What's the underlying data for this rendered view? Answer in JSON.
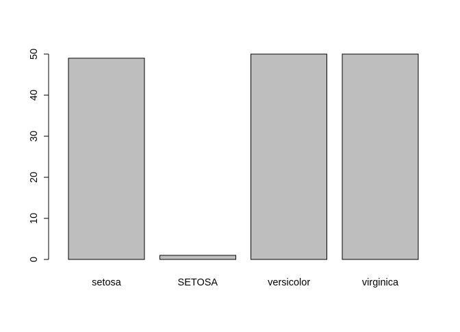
{
  "chart_data": {
    "type": "bar",
    "title": "",
    "xlabel": "",
    "ylabel": "",
    "categories": [
      "setosa",
      "SETOSA",
      "versicolor",
      "virginica"
    ],
    "values": [
      49,
      1,
      50,
      50
    ],
    "ylim": [
      0,
      50
    ],
    "yticks": [
      0,
      10,
      20,
      30,
      40,
      50
    ],
    "grid": false,
    "legend": "none",
    "bar_color": "#bebebe",
    "bar_border_color": "#000000"
  }
}
